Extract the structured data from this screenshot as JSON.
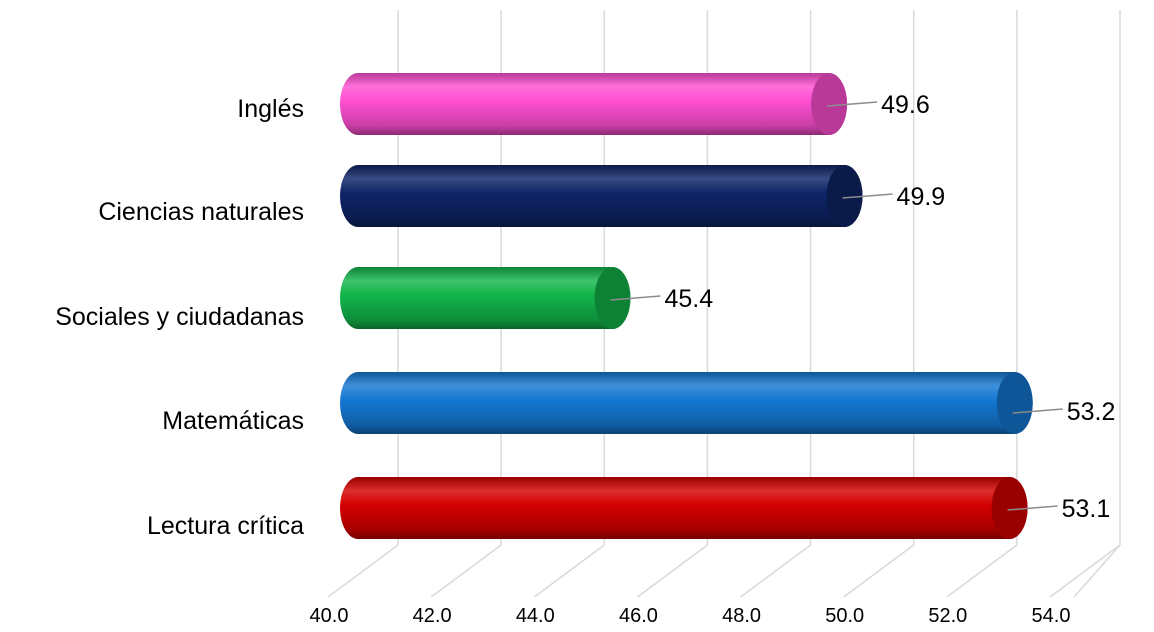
{
  "chart_data": {
    "type": "bar",
    "orientation": "horizontal",
    "style": "3d-cylinder",
    "title": "",
    "xlabel": "",
    "ylabel": "",
    "categories": [
      "Inglés",
      "Ciencias naturales",
      "Sociales y ciudadanas",
      "Matemáticas",
      "Lectura crítica"
    ],
    "values": [
      49.6,
      49.9,
      45.4,
      53.2,
      53.1
    ],
    "data_labels": [
      "49.6",
      "49.9",
      "45.4",
      "53.2",
      "53.1"
    ],
    "xlim": [
      40,
      54
    ],
    "xticks": [
      "40.0",
      "42.0",
      "44.0",
      "46.0",
      "48.0",
      "50.0",
      "52.0",
      "54.0"
    ],
    "grid": true,
    "legend": "none",
    "colors": {
      "Inglés": "#ff4fd2",
      "Ciencias naturales": "#0e2466",
      "Sociales y ciudadanas": "#12b54a",
      "Matemáticas": "#1478d2",
      "Lectura crítica": "#d40000"
    }
  }
}
